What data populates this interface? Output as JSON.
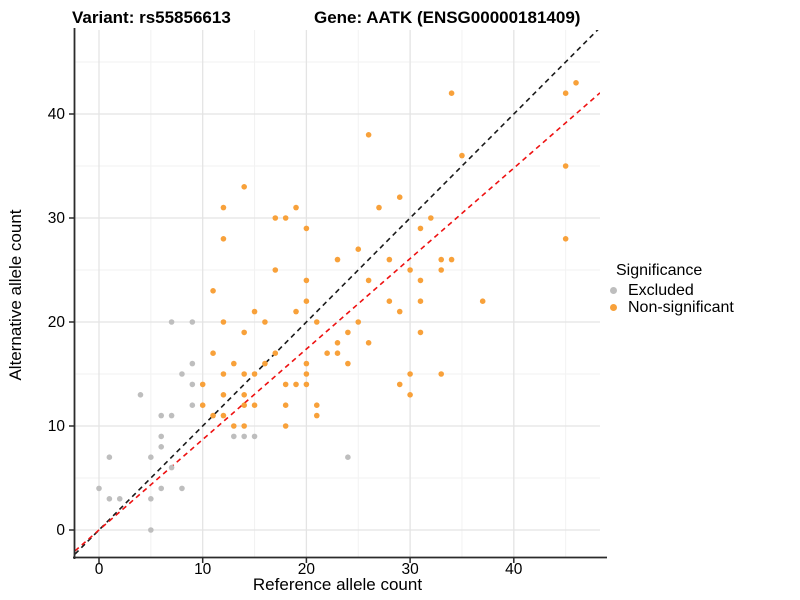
{
  "titles": {
    "variant": "Variant: rs55856613",
    "gene": "Gene: AATK (ENSG00000181409)"
  },
  "chart_data": {
    "type": "scatter",
    "title_variant": "Variant: rs55856613",
    "title_gene": "Gene: AATK (ENSG00000181409)",
    "xlabel": "Reference allele count",
    "ylabel": "Alternative allele count",
    "x_ticks": [
      0,
      10,
      20,
      30,
      40
    ],
    "y_ticks": [
      0,
      10,
      20,
      30,
      40
    ],
    "x_minor_gridlines": [
      5,
      15,
      25,
      35,
      45
    ],
    "y_minor_gridlines": [
      5,
      15,
      25,
      35,
      45
    ],
    "xlim": [
      -2.3,
      48.3
    ],
    "ylim": [
      -2.6,
      48.1
    ],
    "grid": true,
    "legend": {
      "title": "Significance",
      "position": "right",
      "items": [
        {
          "label": "Excluded",
          "color": "#bebebe"
        },
        {
          "label": "Non-significant",
          "color": "#f8a13a"
        }
      ]
    },
    "series": [
      {
        "name": "Excluded",
        "color": "#bebebe",
        "points": [
          [
            0,
            4
          ],
          [
            1,
            3
          ],
          [
            2,
            3
          ],
          [
            5,
            3
          ],
          [
            6,
            4
          ],
          [
            8,
            4
          ],
          [
            5,
            0
          ],
          [
            1,
            7
          ],
          [
            5,
            7
          ],
          [
            6,
            8
          ],
          [
            6,
            9
          ],
          [
            7,
            6
          ],
          [
            6,
            11
          ],
          [
            7,
            11
          ],
          [
            4,
            13
          ],
          [
            9,
            12
          ],
          [
            9,
            14
          ],
          [
            8,
            15
          ],
          [
            9,
            16
          ],
          [
            7,
            20
          ],
          [
            9,
            20
          ],
          [
            13,
            9
          ],
          [
            14,
            9
          ],
          [
            15,
            9
          ],
          [
            24,
            7
          ]
        ]
      },
      {
        "name": "Non-significant",
        "color": "#f8a13a",
        "points": [
          [
            10,
            12
          ],
          [
            11,
            11
          ],
          [
            12,
            11
          ],
          [
            12,
            13
          ],
          [
            13,
            10
          ],
          [
            14,
            10
          ],
          [
            14,
            12
          ],
          [
            14,
            13
          ],
          [
            15,
            12
          ],
          [
            10,
            14
          ],
          [
            12,
            15
          ],
          [
            14,
            15
          ],
          [
            15,
            15
          ],
          [
            13,
            16
          ],
          [
            16,
            16
          ],
          [
            11,
            17
          ],
          [
            17,
            17
          ],
          [
            18,
            14
          ],
          [
            19,
            14
          ],
          [
            20,
            14
          ],
          [
            20,
            15
          ],
          [
            20,
            16
          ],
          [
            18,
            12
          ],
          [
            18,
            10
          ],
          [
            21,
            12
          ],
          [
            21,
            11
          ],
          [
            30,
            13
          ],
          [
            29,
            14
          ],
          [
            30,
            15
          ],
          [
            33,
            15
          ],
          [
            12,
            20
          ],
          [
            14,
            19
          ],
          [
            15,
            21
          ],
          [
            16,
            20
          ],
          [
            21,
            20
          ],
          [
            19,
            21
          ],
          [
            20,
            22
          ],
          [
            23,
            18
          ],
          [
            26,
            18
          ],
          [
            22,
            17
          ],
          [
            23,
            17
          ],
          [
            24,
            16
          ],
          [
            24,
            19
          ],
          [
            25,
            20
          ],
          [
            31,
            19
          ],
          [
            20,
            24
          ],
          [
            26,
            24
          ],
          [
            31,
            24
          ],
          [
            17,
            25
          ],
          [
            30,
            25
          ],
          [
            28,
            26
          ],
          [
            23,
            26
          ],
          [
            25,
            27
          ],
          [
            28,
            22
          ],
          [
            31,
            22
          ],
          [
            37,
            22
          ],
          [
            29,
            21
          ],
          [
            33,
            25
          ],
          [
            33,
            26
          ],
          [
            34,
            26
          ],
          [
            45,
            28
          ],
          [
            11,
            23
          ],
          [
            12,
            28
          ],
          [
            12,
            31
          ],
          [
            14,
            33
          ],
          [
            17,
            30
          ],
          [
            18,
            30
          ],
          [
            19,
            31
          ],
          [
            20,
            29
          ],
          [
            27,
            31
          ],
          [
            26,
            38
          ],
          [
            29,
            32
          ],
          [
            31,
            29
          ],
          [
            32,
            30
          ],
          [
            34,
            42
          ],
          [
            35,
            36
          ],
          [
            45,
            35
          ],
          [
            45,
            42
          ],
          [
            46,
            43
          ]
        ]
      }
    ],
    "reference_lines": [
      {
        "name": "identity",
        "slope": 1,
        "intercept": 0,
        "color": "#1a1a1a",
        "dashed": true
      },
      {
        "name": "expected-ratio",
        "slope": 0.87,
        "intercept": 0,
        "color": "#ee1111",
        "dashed": true
      }
    ]
  }
}
